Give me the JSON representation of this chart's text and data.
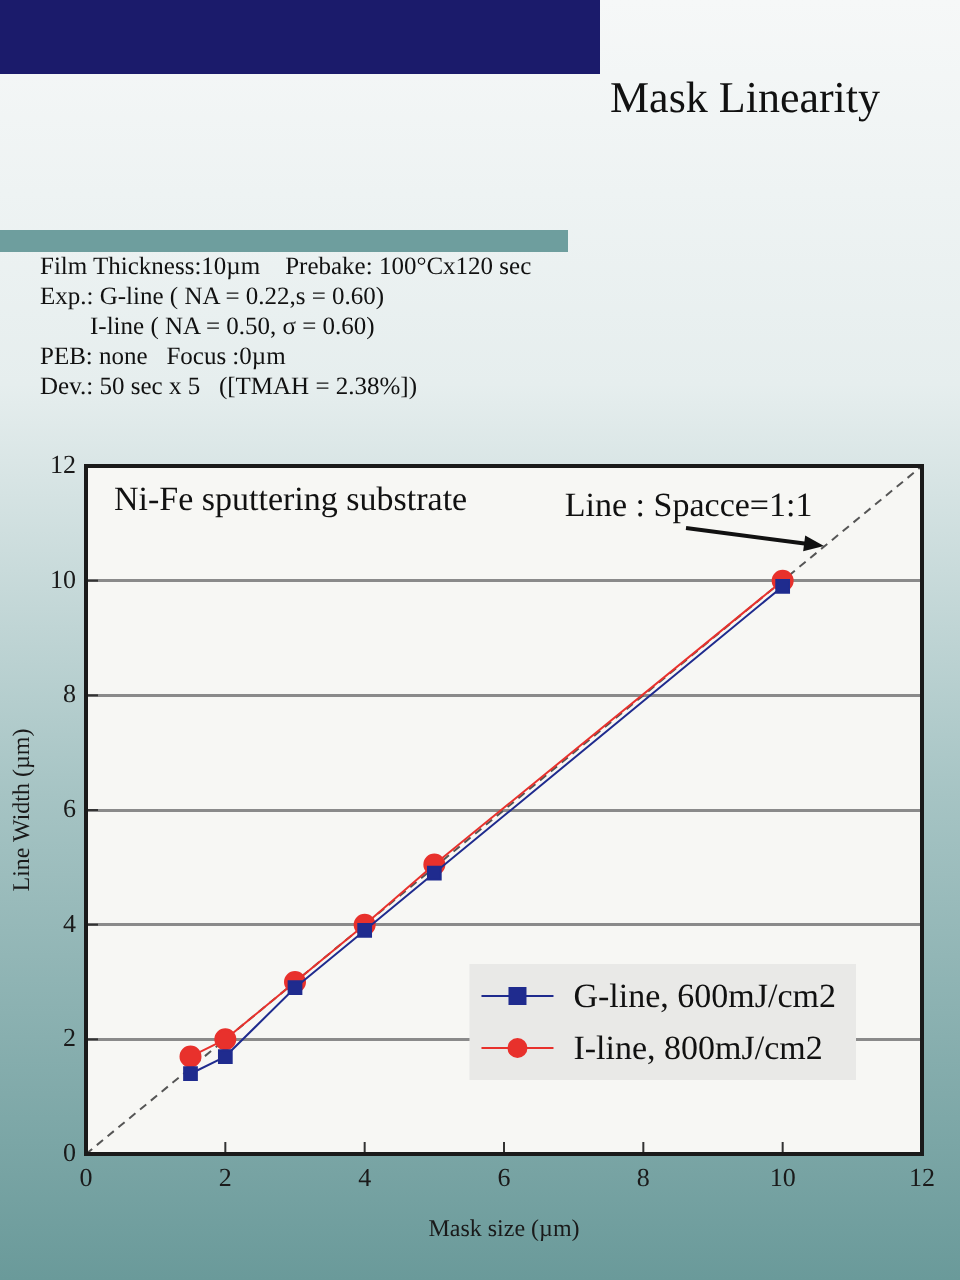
{
  "chart_data": {
    "type": "line",
    "title": "Mask Linearity",
    "subtitle": "Film Thickness:10µm    Prebake: 100°Cx120 sec\nExp.: G-line ( NA = 0.22,s = 0.60)\n        I-line ( NA = 0.50, σ = 0.60)\nPEB: none   Focus :0µm\nDev.: 50 sec x 5   ([TMAH = 2.38%])",
    "xlabel": "Mask size (µm)",
    "ylabel": "Line Width (µm)",
    "xlim": [
      0,
      12
    ],
    "xticks": [
      0,
      2,
      4,
      6,
      8,
      10,
      12
    ],
    "ylim": [
      0,
      12
    ],
    "yticks": [
      0,
      2,
      4,
      6,
      8,
      10,
      12
    ],
    "grid": "y",
    "legend": "bottom right",
    "series": [
      {
        "name": "G-line, 600mJ/cm2",
        "color": "#1f2b8e",
        "marker": "square",
        "x": [
          1.5,
          2,
          3,
          4,
          5,
          10
        ],
        "values": [
          1.4,
          1.7,
          2.9,
          3.9,
          4.9,
          9.9
        ]
      },
      {
        "name": "I-line, 800mJ/cm2",
        "color": "#e8312c",
        "marker": "circle",
        "x": [
          1.5,
          2,
          3,
          4,
          5,
          10
        ],
        "values": [
          1.7,
          2.0,
          3.0,
          4.0,
          5.05,
          10.0
        ]
      },
      {
        "color": "#555555",
        "marker": "none",
        "line_style": "dashed",
        "x": [
          0,
          12
        ],
        "values": [
          0,
          12
        ]
      }
    ],
    "annotations": [
      "Ni-Fe sputtering substrate",
      {
        "text": "Line : Spacce=1:1",
        "x": 10.6,
        "y": 10.6
      }
    ]
  }
}
